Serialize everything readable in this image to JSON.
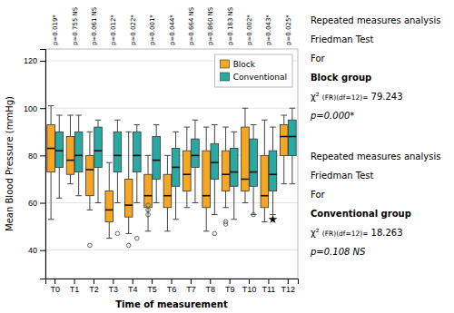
{
  "chart_data": {
    "type": "box",
    "categories": [
      "T0",
      "T1",
      "T2",
      "T3",
      "T4",
      "T5",
      "T6",
      "T7",
      "T8",
      "T9",
      "T10",
      "T11",
      "T12"
    ],
    "xlabel": "Time of measurement",
    "ylabel": "Mean Blood Pressure (mmHg)",
    "ylim": [
      28,
      125
    ],
    "yticks": [
      40,
      60,
      80,
      100,
      120
    ],
    "grid": true,
    "legend": "upper right",
    "series": [
      {
        "name": "Block",
        "color": "#F5A623",
        "medians": [
          83,
          78,
          74,
          57,
          59,
          63,
          63,
          72,
          63,
          72,
          70,
          63,
          88
        ],
        "q1": [
          73,
          72,
          63,
          52,
          54,
          58,
          58,
          65,
          58,
          65,
          65,
          58,
          80
        ],
        "q3": [
          93,
          88,
          80,
          65,
          70,
          72,
          72,
          82,
          82,
          82,
          92,
          80,
          93
        ],
        "whislo": [
          53,
          68,
          57,
          45,
          47,
          48,
          48,
          58,
          48,
          58,
          60,
          52,
          68
        ],
        "whishi": [
          101,
          97,
          90,
          77,
          90,
          80,
          80,
          92,
          92,
          92,
          100,
          95,
          97
        ],
        "outliers": [
          [],
          [],
          [
            42
          ],
          [],
          [
            42
          ],
          [
            59,
            57,
            55
          ],
          [],
          [],
          [],
          [
            52,
            51
          ],
          [],
          [],
          []
        ]
      },
      {
        "name": "Conventional",
        "color": "#2AA9A4",
        "medians": [
          82,
          80,
          82,
          80,
          80,
          78,
          75,
          80,
          77,
          73,
          73,
          72,
          88
        ],
        "q1": [
          75,
          73,
          75,
          73,
          73,
          70,
          67,
          75,
          70,
          67,
          67,
          65,
          80
        ],
        "q3": [
          90,
          90,
          92,
          90,
          90,
          88,
          83,
          87,
          85,
          83,
          87,
          82,
          95
        ],
        "whislo": [
          62,
          63,
          60,
          60,
          60,
          60,
          53,
          60,
          55,
          53,
          55,
          55,
          68
        ],
        "whishi": [
          97,
          97,
          95,
          95,
          93,
          93,
          90,
          95,
          93,
          90,
          93,
          92,
          100
        ],
        "outliers": [
          [],
          [],
          [],
          [
            47
          ],
          [
            45
          ],
          [],
          [],
          [],
          [
            47
          ],
          [],
          [
            55
          ],
          [],
          []
        ],
        "extremes": [
          [],
          [],
          [],
          [],
          [],
          [],
          [],
          [],
          [],
          [],
          [],
          [
            53
          ],
          []
        ]
      }
    ],
    "annotations": {
      "per_category": [
        "p=0.019*",
        "p=0.755 NS",
        "p=0.061 NS",
        "p=0.012*",
        "p=0.022*",
        "p=0.001*",
        "p=0.044*",
        "p=0.664 NS",
        "p=0.860 NS",
        "p=0.183 NS",
        "p=0.002*",
        "p=0.043*",
        "p=0.025*"
      ],
      "side_panels": [
        [
          [
            "Repeated measures analysis"
          ],
          [
            "Friedman Test"
          ],
          [
            "For"
          ],
          [
            "Block group"
          ],
          [
            "χ²",
            "(FR)(df=12)=",
            "79.243"
          ],
          [
            "p=0.000*"
          ]
        ],
        [
          [
            "Repeated measures analysis"
          ],
          [
            "Friedman Test"
          ],
          [
            "For"
          ],
          [
            "Conventional group"
          ],
          [
            "χ²",
            "(FR)(df=12)=",
            "18.263"
          ],
          [
            "p=0.108 NS"
          ]
        ]
      ]
    }
  }
}
